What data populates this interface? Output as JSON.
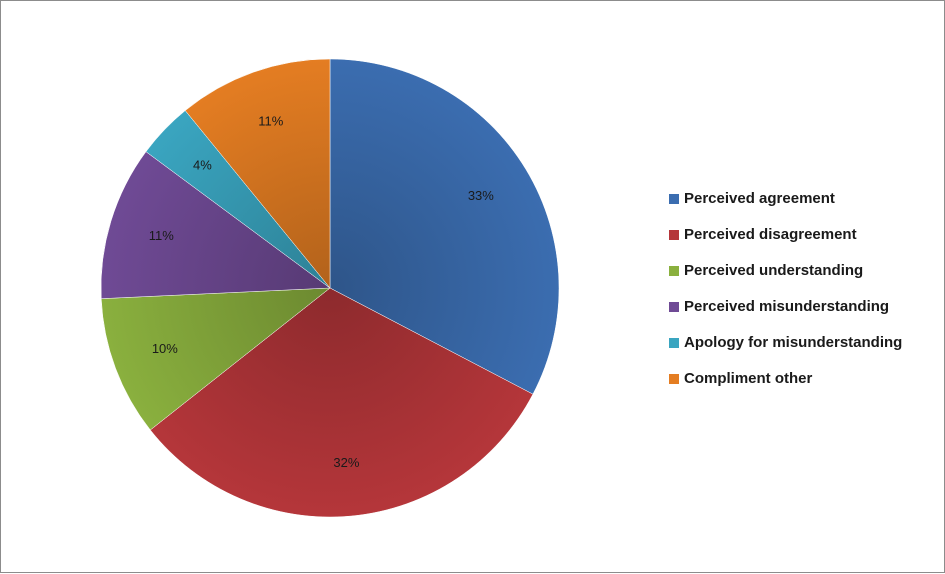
{
  "chart_data": {
    "type": "pie",
    "start_angle_deg": 0,
    "direction": "clockwise",
    "legend_position": "right",
    "slices": [
      {
        "label": "Perceived agreement",
        "value": 33,
        "display": "33%",
        "color": "#3b6db0"
      },
      {
        "label": "Perceived disagreement",
        "value": 32,
        "display": "32%",
        "color": "#b5363a"
      },
      {
        "label": "Perceived understanding",
        "value": 10,
        "display": "10%",
        "color": "#8ab03e"
      },
      {
        "label": "Perceived misunderstanding",
        "value": 11,
        "display": "11%",
        "color": "#6f4a95"
      },
      {
        "label": "Apology for misunderstanding",
        "value": 4,
        "display": "4%",
        "color": "#3aa5c0"
      },
      {
        "label": "Compliment other",
        "value": 11,
        "display": "11%",
        "color": "#e47d22"
      }
    ]
  }
}
